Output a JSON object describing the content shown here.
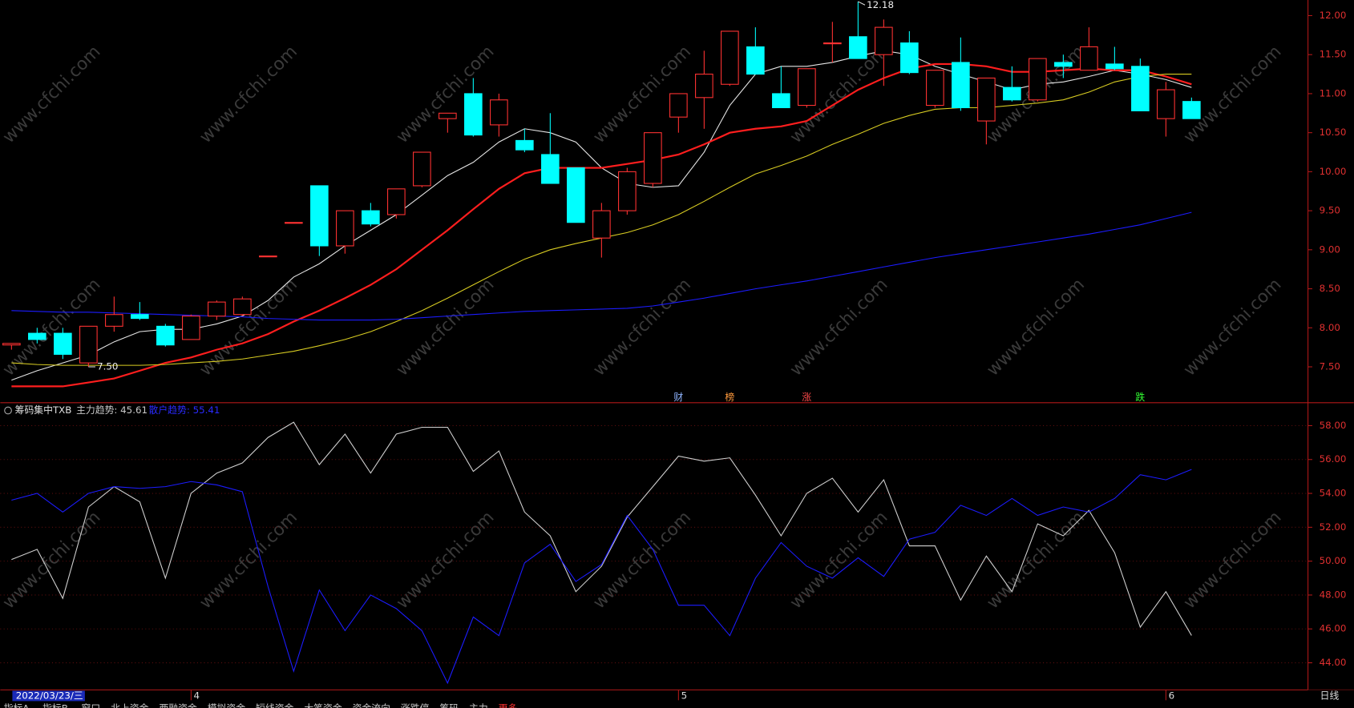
{
  "chart_data": [
    {
      "type": "candlestick",
      "categories": [
        "2022/03/23/三",
        null,
        null,
        null,
        null,
        null,
        null,
        "4",
        null,
        null,
        null,
        null,
        null,
        null,
        null,
        null,
        null,
        null,
        null,
        null,
        null,
        null,
        null,
        null,
        null,
        null,
        "5",
        null,
        null,
        null,
        null,
        null,
        null,
        null,
        null,
        null,
        null,
        null,
        null,
        null,
        null,
        null,
        null,
        null,
        null,
        "6",
        null
      ],
      "open": [
        7.78,
        7.93,
        7.93,
        7.55,
        8.02,
        8.17,
        8.02,
        7.85,
        8.15,
        8.17,
        8.92,
        9.35,
        9.82,
        9.05,
        9.5,
        9.45,
        9.82,
        10.68,
        11.0,
        10.6,
        10.4,
        10.22,
        10.05,
        9.15,
        9.5,
        9.85,
        10.7,
        10.95,
        11.12,
        11.6,
        11.0,
        10.85,
        11.65,
        11.73,
        11.5,
        11.65,
        10.85,
        11.4,
        10.65,
        11.08,
        10.92,
        11.4,
        11.3,
        11.38,
        11.35,
        10.68,
        10.9
      ],
      "high": [
        7.8,
        8.0,
        8.0,
        8.02,
        8.4,
        8.33,
        8.05,
        8.17,
        8.35,
        8.4,
        8.92,
        9.35,
        9.82,
        9.5,
        9.6,
        9.78,
        10.25,
        10.75,
        11.2,
        11.0,
        10.55,
        10.75,
        10.05,
        9.6,
        10.05,
        10.5,
        11.0,
        11.55,
        11.8,
        11.85,
        11.35,
        11.32,
        11.92,
        12.18,
        11.95,
        11.8,
        11.3,
        11.72,
        11.2,
        11.35,
        11.45,
        11.5,
        11.85,
        11.6,
        11.45,
        11.15,
        10.95
      ],
      "low": [
        7.72,
        7.8,
        7.6,
        7.5,
        7.95,
        8.1,
        7.76,
        7.85,
        8.1,
        8.15,
        8.92,
        9.35,
        8.92,
        8.95,
        9.3,
        9.4,
        9.8,
        10.5,
        10.45,
        10.45,
        10.25,
        9.85,
        9.35,
        8.9,
        9.45,
        9.8,
        10.5,
        10.55,
        11.1,
        11.25,
        10.82,
        10.82,
        11.4,
        11.45,
        11.1,
        11.25,
        10.82,
        10.78,
        10.35,
        10.9,
        10.9,
        11.2,
        11.3,
        11.3,
        10.78,
        10.45,
        10.68
      ],
      "close": [
        7.8,
        7.85,
        7.66,
        8.02,
        8.17,
        8.12,
        7.78,
        8.15,
        8.33,
        8.37,
        8.92,
        9.35,
        9.05,
        9.5,
        9.33,
        9.78,
        10.25,
        10.75,
        10.47,
        10.92,
        10.28,
        9.85,
        9.35,
        9.5,
        10.0,
        10.5,
        11.0,
        11.25,
        11.8,
        11.25,
        10.82,
        11.32,
        11.65,
        11.45,
        11.85,
        11.27,
        11.3,
        10.82,
        11.2,
        10.92,
        11.45,
        11.35,
        11.6,
        11.32,
        10.78,
        11.05,
        10.68
      ],
      "up_color": "#ff3232",
      "down_color": "#00ffff",
      "lines": [
        {
          "color": "#e6e6e6",
          "values": [
            7.33,
            7.45,
            7.55,
            7.65,
            7.82,
            7.95,
            7.98,
            7.98,
            8.05,
            8.15,
            8.35,
            8.65,
            8.82,
            9.05,
            9.25,
            9.45,
            9.7,
            9.95,
            10.12,
            10.38,
            10.55,
            10.5,
            10.38,
            10.05,
            9.85,
            9.8,
            9.82,
            10.25,
            10.85,
            11.25,
            11.35,
            11.35,
            11.4,
            11.48,
            11.55,
            11.5,
            11.35,
            11.25,
            11.15,
            11.05,
            11.12,
            11.15,
            11.22,
            11.3,
            11.25,
            11.18,
            11.08
          ]
        },
        {
          "color": "#ff1e1e",
          "values": [
            7.25,
            7.25,
            7.25,
            7.3,
            7.35,
            7.45,
            7.55,
            7.62,
            7.72,
            7.8,
            7.92,
            8.08,
            8.22,
            8.38,
            8.55,
            8.75,
            9.0,
            9.25,
            9.52,
            9.78,
            9.98,
            10.05,
            10.05,
            10.05,
            10.1,
            10.15,
            10.22,
            10.35,
            10.5,
            10.55,
            10.58,
            10.65,
            10.85,
            11.05,
            11.2,
            11.32,
            11.38,
            11.38,
            11.35,
            11.28,
            11.28,
            11.3,
            11.32,
            11.3,
            11.3,
            11.22,
            11.12
          ]
        },
        {
          "color": "#d8cc22",
          "values": [
            7.55,
            7.53,
            7.52,
            7.52,
            7.52,
            7.52,
            7.53,
            7.55,
            7.57,
            7.6,
            7.65,
            7.7,
            7.77,
            7.85,
            7.95,
            8.08,
            8.22,
            8.38,
            8.55,
            8.72,
            8.88,
            9.0,
            9.08,
            9.15,
            9.22,
            9.32,
            9.45,
            9.62,
            9.8,
            9.97,
            10.08,
            10.2,
            10.35,
            10.48,
            10.62,
            10.72,
            10.8,
            10.82,
            10.82,
            10.85,
            10.88,
            10.92,
            11.02,
            11.15,
            11.22,
            11.25,
            11.25
          ]
        },
        {
          "color": "#1c1cff",
          "values": [
            8.22,
            8.21,
            8.2,
            8.2,
            8.19,
            8.18,
            8.17,
            8.16,
            8.15,
            8.14,
            8.12,
            8.11,
            8.1,
            8.1,
            8.1,
            8.11,
            8.13,
            8.15,
            8.17,
            8.19,
            8.21,
            8.22,
            8.23,
            8.24,
            8.25,
            8.28,
            8.33,
            8.38,
            8.44,
            8.5,
            8.55,
            8.6,
            8.66,
            8.72,
            8.78,
            8.84,
            8.9,
            8.95,
            9.0,
            9.05,
            9.1,
            9.15,
            9.2,
            9.26,
            9.32,
            9.4,
            9.48
          ]
        }
      ],
      "ylim": [
        7.04,
        12.2
      ],
      "yticks": [
        {
          "value": 7.5,
          "label": "7.50"
        },
        {
          "value": 8,
          "label": "8.00"
        },
        {
          "value": 8.5,
          "label": "8.50"
        },
        {
          "value": 9,
          "label": "9.00"
        },
        {
          "value": 9.5,
          "label": "9.50"
        },
        {
          "value": 10,
          "label": "10.00"
        },
        {
          "value": 10.5,
          "label": "10.50"
        },
        {
          "value": 11,
          "label": "11.00"
        },
        {
          "value": 11.5,
          "label": "11.50"
        },
        {
          "value": 12,
          "label": "12.00"
        }
      ],
      "max_label": {
        "index": 33,
        "label": "12.18"
      },
      "min_label": {
        "index": 3,
        "label": "7.50"
      },
      "events": [
        {
          "index": 26,
          "label": "财",
          "color": "#8fb4ff"
        },
        {
          "index": 28,
          "label": "榜",
          "color": "#ff9a3c"
        },
        {
          "index": 31,
          "label": "涨",
          "color": "#ff4a4a"
        },
        {
          "index": 44,
          "label": "跌",
          "color": "#33ff33"
        }
      ]
    },
    {
      "type": "line",
      "title": "筹码集中TXB",
      "indicator_labels": [
        "主力趋势: 45.61",
        "散户趋势: 55.41"
      ],
      "series": [
        {
          "name": "主力趋势",
          "color": "#d0d0d0",
          "values": [
            50.1,
            50.7,
            47.8,
            53.2,
            54.4,
            53.5,
            49.0,
            54.0,
            55.2,
            55.8,
            57.3,
            58.2,
            55.7,
            57.5,
            55.2,
            57.5,
            57.9,
            57.9,
            55.3,
            56.5,
            52.9,
            51.5,
            48.2,
            49.7,
            52.6,
            54.4,
            56.2,
            55.9,
            56.1,
            53.9,
            51.5,
            54.0,
            54.9,
            52.9,
            54.8,
            50.9,
            50.9,
            47.7,
            50.3,
            48.2,
            52.2,
            51.5,
            53.0,
            50.5,
            46.1,
            48.2,
            45.61
          ]
        },
        {
          "name": "散户趋势",
          "color": "#1c1cff",
          "values": [
            53.6,
            54.0,
            52.9,
            54.0,
            54.4,
            54.3,
            54.4,
            54.7,
            54.5,
            54.1,
            48.5,
            43.5,
            48.3,
            45.9,
            48.0,
            47.2,
            45.9,
            42.8,
            46.7,
            45.6,
            49.9,
            51.0,
            48.8,
            49.8,
            52.7,
            50.7,
            47.4,
            47.4,
            45.6,
            49.0,
            51.1,
            49.7,
            49.0,
            50.2,
            49.1,
            51.3,
            51.7,
            53.3,
            52.7,
            53.7,
            52.7,
            53.2,
            52.9,
            53.7,
            55.1,
            54.8,
            55.41
          ]
        }
      ],
      "ylim": [
        42.4,
        59.2
      ],
      "yticks": [
        {
          "value": 44,
          "label": "44.00"
        },
        {
          "value": 46,
          "label": "46.00"
        },
        {
          "value": 48,
          "label": "48.00"
        },
        {
          "value": 50,
          "label": "50.00"
        },
        {
          "value": 52,
          "label": "52.00"
        },
        {
          "value": 54,
          "label": "54.00"
        },
        {
          "value": 56,
          "label": "56.00"
        },
        {
          "value": 58,
          "label": "58.00"
        }
      ],
      "grid": true
    }
  ],
  "period": "日线",
  "watermark": "www.cfchi.com",
  "tabs": [
    "指标A",
    "指标B",
    "窗口",
    "北上资金",
    "两融资金",
    "模拟资金",
    "短线资金",
    "大笔资金",
    "资金流向",
    "涨跌停",
    "筹码",
    "主力",
    "更多"
  ]
}
